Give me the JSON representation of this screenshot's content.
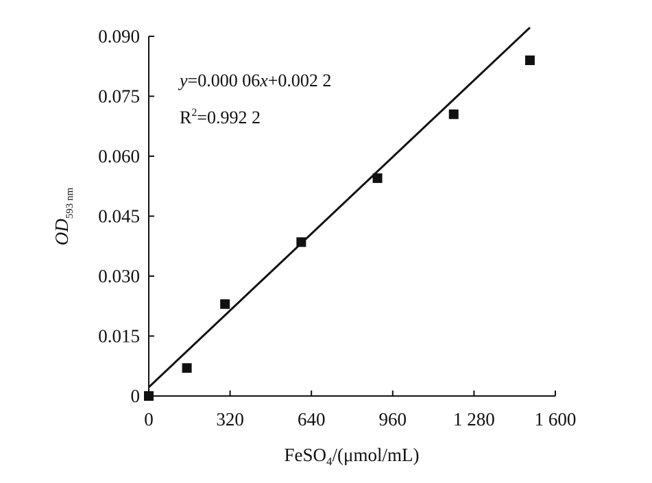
{
  "chart_data": {
    "type": "scatter",
    "xlabel_main": "FeSO",
    "xlabel_sub": "4",
    "xlabel_unit": "/(μmol/mL)",
    "ylabel_main": "OD",
    "ylabel_sub": "593 nm",
    "xlim": [
      0,
      1600
    ],
    "ylim": [
      0,
      0.09
    ],
    "x_ticks": [
      0,
      320,
      640,
      960,
      1280,
      1600
    ],
    "x_tick_labels": [
      "0",
      "320",
      "640",
      "960",
      "1 280",
      "1 600"
    ],
    "y_ticks": [
      0,
      0.015,
      0.03,
      0.045,
      0.06,
      0.075,
      0.09
    ],
    "y_tick_labels": [
      "0",
      "0.015",
      "0.030",
      "0.045",
      "0.060",
      "0.075",
      "0.090"
    ],
    "series": [
      {
        "x": [
          0,
          150,
          300,
          600,
          900,
          1200,
          1500
        ],
        "y": [
          0.0,
          0.007,
          0.023,
          0.0385,
          0.0545,
          0.0705,
          0.084
        ]
      }
    ],
    "trendline": {
      "slope": 6e-05,
      "intercept": 0.0022,
      "x_range": [
        0,
        1500
      ]
    },
    "equation_text": {
      "y_var": "y",
      "eq_mid": "=0.000 06",
      "x_var": "x",
      "eq_end": "+0.002 2"
    },
    "r2_text": {
      "R": "R",
      "sup": "2",
      "value": "=0.992 2"
    },
    "grid": false,
    "legend": "none"
  }
}
